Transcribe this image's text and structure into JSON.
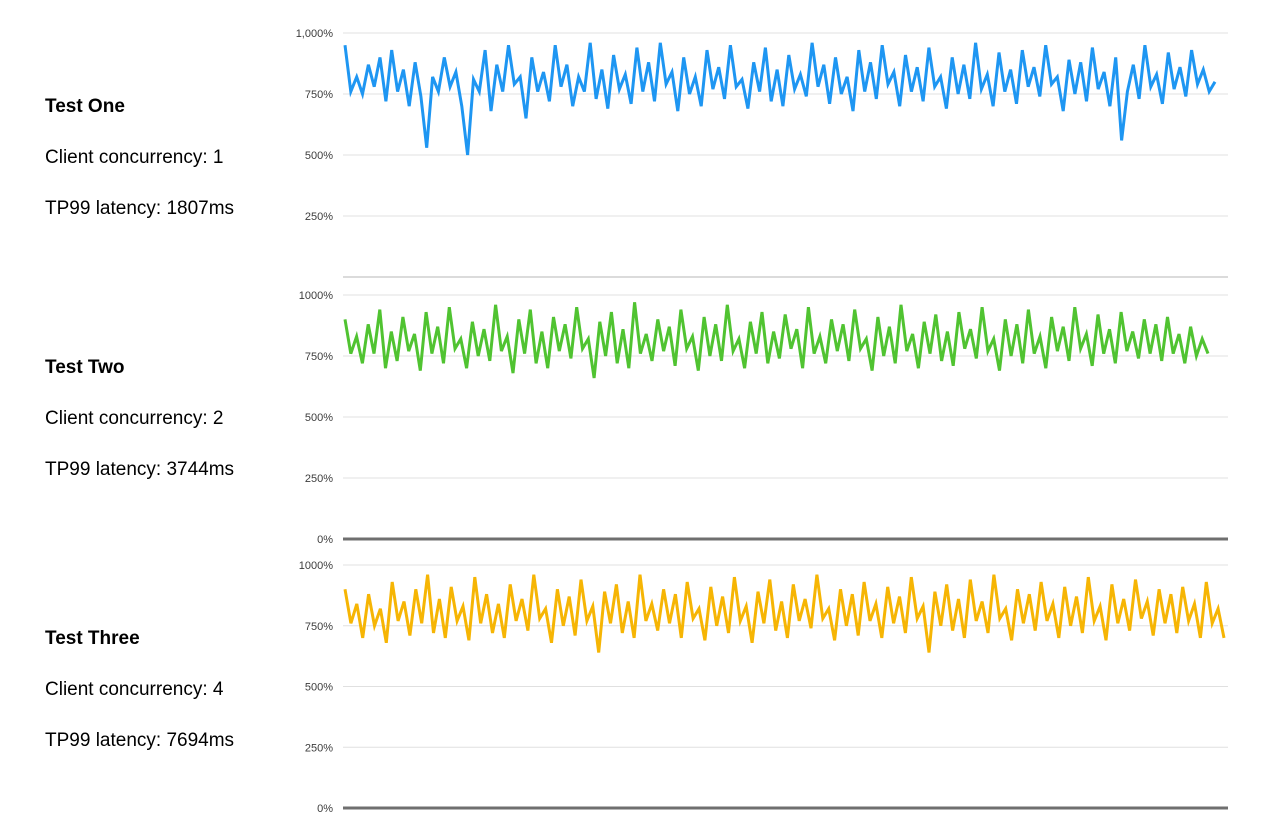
{
  "page": {
    "background": "#ffffff"
  },
  "tests": [
    {
      "title": "Test One",
      "concurrency": "Client concurrency: 1",
      "latency": "TP99 latency: 1807ms"
    },
    {
      "title": "Test Two",
      "concurrency": "Client concurrency: 2",
      "latency": "TP99 latency: 3744ms"
    },
    {
      "title": "Test Three",
      "concurrency": "Client concurrency: 4",
      "latency": "TP99 latency: 7694ms"
    }
  ],
  "chart_data": [
    {
      "type": "line",
      "name": "test-one-cpu",
      "color": "#1E96F2",
      "title": "",
      "xlabel": "",
      "ylabel": "",
      "unit": "%",
      "ylim": [
        0,
        1000
      ],
      "grid": true,
      "legend": "none",
      "yticks": [
        {
          "value": 1000,
          "label": "1,000%"
        },
        {
          "value": 750,
          "label": "750%"
        },
        {
          "value": 500,
          "label": "500%"
        },
        {
          "value": 250,
          "label": "250%"
        },
        {
          "value": 0,
          "label": ""
        }
      ],
      "values": [
        950,
        760,
        820,
        750,
        870,
        780,
        900,
        720,
        930,
        760,
        850,
        700,
        880,
        740,
        530,
        820,
        760,
        900,
        780,
        840,
        700,
        500,
        810,
        760,
        930,
        680,
        870,
        760,
        950,
        790,
        820,
        650,
        900,
        760,
        840,
        720,
        950,
        780,
        870,
        700,
        820,
        760,
        960,
        730,
        850,
        690,
        910,
        770,
        830,
        710,
        940,
        760,
        880,
        720,
        960,
        790,
        840,
        680,
        900,
        750,
        820,
        700,
        930,
        770,
        860,
        730,
        950,
        780,
        810,
        690,
        880,
        760,
        940,
        720,
        850,
        700,
        910,
        770,
        830,
        740,
        960,
        780,
        870,
        710,
        900,
        750,
        820,
        680,
        930,
        760,
        880,
        730,
        950,
        790,
        840,
        700,
        910,
        760,
        860,
        720,
        940,
        780,
        820,
        690,
        900,
        750,
        870,
        730,
        960,
        770,
        830,
        700,
        920,
        760,
        850,
        710,
        930,
        780,
        860,
        740,
        950,
        790,
        820,
        680,
        890,
        750,
        880,
        720,
        940,
        770,
        840,
        700,
        900,
        560,
        760,
        870,
        730,
        950,
        780,
        830,
        710,
        920,
        770,
        860,
        740,
        930,
        790,
        850,
        760,
        800
      ]
    },
    {
      "type": "line",
      "name": "test-two-cpu",
      "color": "#50C331",
      "title": "",
      "xlabel": "",
      "ylabel": "",
      "unit": "%",
      "ylim": [
        0,
        1000
      ],
      "grid": true,
      "legend": "none",
      "yticks": [
        {
          "value": 1000,
          "label": "1000%"
        },
        {
          "value": 750,
          "label": "750%"
        },
        {
          "value": 500,
          "label": "500%"
        },
        {
          "value": 250,
          "label": "250%"
        },
        {
          "value": 0,
          "label": "0%"
        }
      ],
      "values": [
        900,
        760,
        830,
        720,
        880,
        760,
        940,
        700,
        850,
        730,
        910,
        770,
        840,
        690,
        930,
        760,
        870,
        720,
        950,
        780,
        820,
        700,
        890,
        750,
        860,
        730,
        960,
        770,
        830,
        680,
        900,
        760,
        940,
        720,
        850,
        700,
        910,
        770,
        880,
        740,
        950,
        780,
        820,
        660,
        890,
        750,
        930,
        720,
        860,
        700,
        970,
        760,
        840,
        730,
        900,
        770,
        870,
        710,
        940,
        780,
        830,
        690,
        910,
        750,
        880,
        730,
        960,
        770,
        820,
        700,
        890,
        760,
        930,
        720,
        850,
        740,
        920,
        780,
        860,
        700,
        950,
        760,
        830,
        720,
        900,
        770,
        880,
        730,
        940,
        780,
        820,
        690,
        910,
        750,
        870,
        720,
        960,
        770,
        840,
        700,
        890,
        760,
        920,
        730,
        850,
        710,
        930,
        780,
        860,
        740,
        950,
        770,
        820,
        690,
        900,
        750,
        880,
        720,
        940,
        760,
        830,
        700,
        910,
        770,
        870,
        730,
        950,
        780,
        840,
        710,
        920,
        760,
        860,
        720,
        930,
        770,
        850,
        740,
        900,
        760,
        880,
        730,
        910,
        760,
        840,
        720,
        870,
        750,
        820,
        760
      ]
    },
    {
      "type": "line",
      "name": "test-three-cpu",
      "color": "#F6B504",
      "title": "",
      "xlabel": "",
      "ylabel": "",
      "unit": "%",
      "ylim": [
        0,
        1000
      ],
      "grid": true,
      "legend": "none",
      "yticks": [
        {
          "value": 1000,
          "label": "1000%"
        },
        {
          "value": 750,
          "label": "750%"
        },
        {
          "value": 500,
          "label": "500%"
        },
        {
          "value": 250,
          "label": "250%"
        },
        {
          "value": 0,
          "label": "0%"
        }
      ],
      "values": [
        900,
        760,
        840,
        700,
        880,
        750,
        820,
        680,
        930,
        770,
        850,
        710,
        900,
        760,
        960,
        720,
        860,
        700,
        910,
        770,
        830,
        690,
        950,
        760,
        880,
        720,
        840,
        700,
        920,
        770,
        860,
        730,
        960,
        780,
        820,
        680,
        900,
        750,
        870,
        710,
        940,
        770,
        830,
        640,
        890,
        760,
        920,
        720,
        850,
        700,
        960,
        770,
        840,
        730,
        900,
        760,
        880,
        700,
        930,
        780,
        820,
        690,
        910,
        750,
        870,
        720,
        950,
        770,
        830,
        680,
        890,
        760,
        940,
        730,
        850,
        700,
        920,
        770,
        860,
        740,
        960,
        780,
        820,
        690,
        900,
        750,
        880,
        710,
        930,
        770,
        840,
        700,
        910,
        760,
        870,
        720,
        950,
        780,
        830,
        640,
        890,
        750,
        920,
        730,
        860,
        700,
        940,
        770,
        850,
        720,
        960,
        780,
        820,
        690,
        900,
        760,
        880,
        730,
        930,
        770,
        840,
        700,
        910,
        750,
        870,
        720,
        950,
        770,
        830,
        690,
        920,
        760,
        860,
        730,
        940,
        780,
        850,
        710,
        900,
        760,
        880,
        720,
        910,
        770,
        840,
        700,
        930,
        760,
        820,
        700
      ]
    }
  ]
}
